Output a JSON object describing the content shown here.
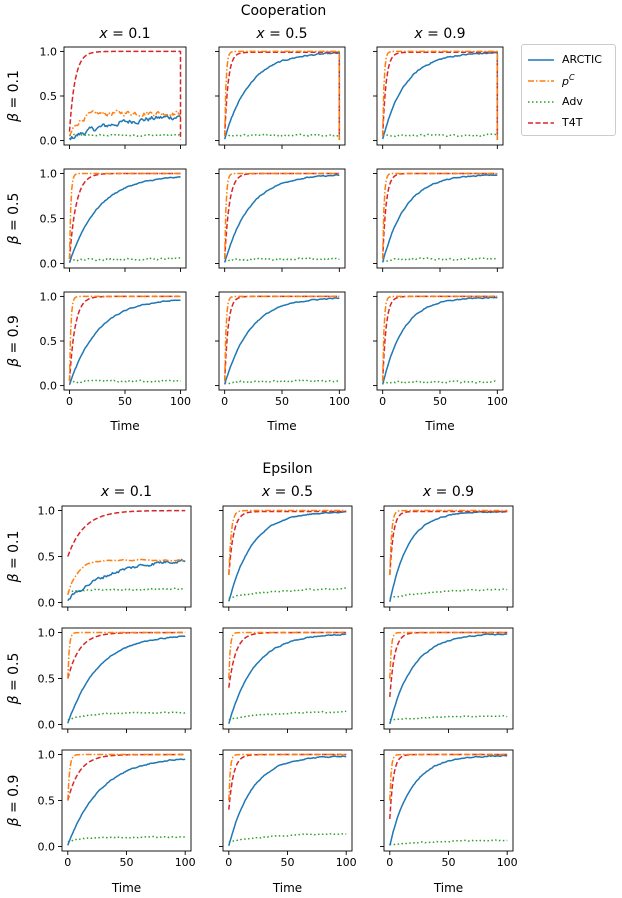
{
  "colors": {
    "ARCTIC": "#1f77b4",
    "pC": "#ff7f0e",
    "Adv": "#2ca02c",
    "T4T": "#d62728"
  },
  "legend": [
    {
      "key": "ARCTIC",
      "label": "ARCTIC",
      "dash": "solid"
    },
    {
      "key": "pC",
      "label": "p",
      "sup": "C",
      "dash": "dashdot"
    },
    {
      "key": "Adv",
      "label": "Adv",
      "dash": "dotted"
    },
    {
      "key": "T4T",
      "label": "T4T",
      "dash": "dashed"
    }
  ],
  "chart_data": [
    {
      "title": "Cooperation",
      "type": "line",
      "xlabel": "Time",
      "xlim": [
        0,
        100
      ],
      "ylim": [
        0,
        1
      ],
      "xticks": [
        "0",
        "50",
        "100"
      ],
      "yticks": [
        "0.0",
        "0.5",
        "1.0"
      ],
      "col_titles": [
        "x = 0.1",
        "x = 0.5",
        "x = 0.9"
      ],
      "row_labels": [
        "β = 0.1",
        "β = 0.5",
        "β = 0.9"
      ],
      "panels": [
        [
          {
            "ARCTIC": {
              "start": 0.02,
              "end": 0.3,
              "tau": 45,
              "noise": 0.03,
              "drop": false
            },
            "pC": {
              "start": 0.04,
              "end": 0.31,
              "tau": 8,
              "noise": 0.03,
              "drop": false
            },
            "Adv": {
              "start": 0.06,
              "end": 0.06,
              "tau": 10,
              "noise": 0.01,
              "drop": false
            },
            "T4T": {
              "start": 0.1,
              "end": 1.0,
              "tau": 5,
              "noise": 0.0,
              "drop": true
            }
          },
          {
            "ARCTIC": {
              "start": 0.02,
              "end": 0.99,
              "tau": 22,
              "noise": 0.008,
              "drop": true
            },
            "pC": {
              "start": 0.05,
              "end": 1.0,
              "tau": 1.2,
              "noise": 0.0,
              "drop": true
            },
            "Adv": {
              "start": 0.05,
              "end": 0.06,
              "tau": 10,
              "noise": 0.01,
              "drop": false
            },
            "T4T": {
              "start": 0.05,
              "end": 0.99,
              "tau": 3,
              "noise": 0.0,
              "drop": true
            }
          },
          {
            "ARCTIC": {
              "start": 0.02,
              "end": 0.99,
              "tau": 20,
              "noise": 0.008,
              "drop": true
            },
            "pC": {
              "start": 0.05,
              "end": 1.0,
              "tau": 1.2,
              "noise": 0.0,
              "drop": true
            },
            "Adv": {
              "start": 0.05,
              "end": 0.06,
              "tau": 10,
              "noise": 0.01,
              "drop": false
            },
            "T4T": {
              "start": 0.05,
              "end": 0.99,
              "tau": 3,
              "noise": 0.0,
              "drop": true
            }
          }
        ],
        [
          {
            "ARCTIC": {
              "start": 0.01,
              "end": 0.98,
              "tau": 26,
              "noise": 0.006,
              "drop": false
            },
            "pC": {
              "start": 0.05,
              "end": 1.0,
              "tau": 1.2,
              "noise": 0.0,
              "drop": false
            },
            "Adv": {
              "start": 0.03,
              "end": 0.05,
              "tau": 10,
              "noise": 0.01,
              "drop": false
            },
            "T4T": {
              "start": 0.05,
              "end": 1.0,
              "tau": 6,
              "noise": 0.0,
              "drop": false
            }
          },
          {
            "ARCTIC": {
              "start": 0.01,
              "end": 0.99,
              "tau": 22,
              "noise": 0.006,
              "drop": false
            },
            "pC": {
              "start": 0.05,
              "end": 1.0,
              "tau": 1.2,
              "noise": 0.0,
              "drop": false
            },
            "Adv": {
              "start": 0.03,
              "end": 0.05,
              "tau": 10,
              "noise": 0.01,
              "drop": false
            },
            "T4T": {
              "start": 0.05,
              "end": 1.0,
              "tau": 4,
              "noise": 0.0,
              "drop": false
            }
          },
          {
            "ARCTIC": {
              "start": 0.01,
              "end": 0.99,
              "tau": 20,
              "noise": 0.006,
              "drop": false
            },
            "pC": {
              "start": 0.05,
              "end": 1.0,
              "tau": 1.2,
              "noise": 0.0,
              "drop": false
            },
            "Adv": {
              "start": 0.03,
              "end": 0.05,
              "tau": 10,
              "noise": 0.01,
              "drop": false
            },
            "T4T": {
              "start": 0.05,
              "end": 1.0,
              "tau": 3,
              "noise": 0.0,
              "drop": false
            }
          }
        ],
        [
          {
            "ARCTIC": {
              "start": 0.01,
              "end": 0.98,
              "tau": 26,
              "noise": 0.006,
              "drop": false
            },
            "pC": {
              "start": 0.05,
              "end": 1.0,
              "tau": 1.2,
              "noise": 0.0,
              "drop": false
            },
            "Adv": {
              "start": 0.03,
              "end": 0.05,
              "tau": 10,
              "noise": 0.01,
              "drop": false
            },
            "T4T": {
              "start": 0.05,
              "end": 1.0,
              "tau": 5,
              "noise": 0.0,
              "drop": false
            }
          },
          {
            "ARCTIC": {
              "start": 0.01,
              "end": 0.99,
              "tau": 22,
              "noise": 0.006,
              "drop": false
            },
            "pC": {
              "start": 0.05,
              "end": 1.0,
              "tau": 1.2,
              "noise": 0.0,
              "drop": false
            },
            "Adv": {
              "start": 0.03,
              "end": 0.05,
              "tau": 10,
              "noise": 0.01,
              "drop": false
            },
            "T4T": {
              "start": 0.05,
              "end": 1.0,
              "tau": 3,
              "noise": 0.0,
              "drop": false
            }
          },
          {
            "ARCTIC": {
              "start": 0.01,
              "end": 0.99,
              "tau": 18,
              "noise": 0.006,
              "drop": false
            },
            "pC": {
              "start": 0.05,
              "end": 1.0,
              "tau": 1.2,
              "noise": 0.0,
              "drop": false
            },
            "Adv": {
              "start": 0.03,
              "end": 0.04,
              "tau": 10,
              "noise": 0.01,
              "drop": false
            },
            "T4T": {
              "start": 0.05,
              "end": 1.0,
              "tau": 3,
              "noise": 0.0,
              "drop": false
            }
          }
        ]
      ]
    },
    {
      "title": "Epsilon",
      "type": "line",
      "xlabel": "Time",
      "xlim": [
        0,
        100
      ],
      "ylim": [
        0,
        1
      ],
      "xticks": [
        "0",
        "50",
        "100"
      ],
      "yticks": [
        "0.0",
        "0.5",
        "1.0"
      ],
      "col_titles": [
        "x = 0.1",
        "x = 0.5",
        "x = 0.9"
      ],
      "row_labels": [
        "β = 0.1",
        "β = 0.5",
        "β = 0.9"
      ],
      "panels": [
        [
          {
            "ARCTIC": {
              "start": 0.03,
              "end": 0.5,
              "tau": 40,
              "noise": 0.02,
              "drop": false
            },
            "pC": {
              "start": 0.08,
              "end": 0.46,
              "tau": 8,
              "noise": 0.006,
              "drop": false
            },
            "Adv": {
              "start": 0.12,
              "end": 0.15,
              "tau": 40,
              "noise": 0.008,
              "drop": false
            },
            "T4T": {
              "start": 0.5,
              "end": 1.0,
              "tau": 14,
              "noise": 0.0,
              "drop": false
            }
          },
          {
            "ARCTIC": {
              "start": 0.01,
              "end": 0.99,
              "tau": 20,
              "noise": 0.006,
              "drop": false
            },
            "pC": {
              "start": 0.3,
              "end": 1.0,
              "tau": 2,
              "noise": 0.0,
              "drop": false
            },
            "Adv": {
              "start": 0.05,
              "end": 0.16,
              "tau": 40,
              "noise": 0.006,
              "drop": false
            },
            "T4T": {
              "start": 0.3,
              "end": 0.99,
              "tau": 4,
              "noise": 0.0,
              "drop": false
            }
          },
          {
            "ARCTIC": {
              "start": 0.01,
              "end": 0.99,
              "tau": 16,
              "noise": 0.006,
              "drop": false
            },
            "pC": {
              "start": 0.3,
              "end": 1.0,
              "tau": 1.5,
              "noise": 0.0,
              "drop": false
            },
            "Adv": {
              "start": 0.05,
              "end": 0.15,
              "tau": 40,
              "noise": 0.006,
              "drop": false
            },
            "T4T": {
              "start": 0.3,
              "end": 0.99,
              "tau": 3,
              "noise": 0.0,
              "drop": false
            }
          }
        ],
        [
          {
            "ARCTIC": {
              "start": 0.01,
              "end": 0.98,
              "tau": 26,
              "noise": 0.006,
              "drop": false
            },
            "pC": {
              "start": 0.5,
              "end": 1.0,
              "tau": 1.2,
              "noise": 0.0,
              "drop": false
            },
            "Adv": {
              "start": 0.05,
              "end": 0.13,
              "tau": 20,
              "noise": 0.006,
              "drop": false
            },
            "T4T": {
              "start": 0.5,
              "end": 1.0,
              "tau": 10,
              "noise": 0.0,
              "drop": false
            }
          },
          {
            "ARCTIC": {
              "start": 0.01,
              "end": 0.99,
              "tau": 22,
              "noise": 0.006,
              "drop": false
            },
            "pC": {
              "start": 0.5,
              "end": 1.0,
              "tau": 1.2,
              "noise": 0.0,
              "drop": false
            },
            "Adv": {
              "start": 0.05,
              "end": 0.14,
              "tau": 30,
              "noise": 0.006,
              "drop": false
            },
            "T4T": {
              "start": 0.4,
              "end": 1.0,
              "tau": 6,
              "noise": 0.0,
              "drop": false
            }
          },
          {
            "ARCTIC": {
              "start": 0.01,
              "end": 0.99,
              "tau": 20,
              "noise": 0.006,
              "drop": false
            },
            "pC": {
              "start": 0.5,
              "end": 1.0,
              "tau": 1.2,
              "noise": 0.0,
              "drop": false
            },
            "Adv": {
              "start": 0.05,
              "end": 0.09,
              "tau": 30,
              "noise": 0.006,
              "drop": false
            },
            "T4T": {
              "start": 0.3,
              "end": 1.0,
              "tau": 4,
              "noise": 0.0,
              "drop": false
            }
          }
        ],
        [
          {
            "ARCTIC": {
              "start": 0.01,
              "end": 0.98,
              "tau": 28,
              "noise": 0.006,
              "drop": false
            },
            "pC": {
              "start": 0.5,
              "end": 1.0,
              "tau": 1.5,
              "noise": 0.0,
              "drop": false
            },
            "Adv": {
              "start": 0.05,
              "end": 0.1,
              "tau": 10,
              "noise": 0.006,
              "drop": false
            },
            "T4T": {
              "start": 0.5,
              "end": 1.0,
              "tau": 10,
              "noise": 0.0,
              "drop": false
            }
          },
          {
            "ARCTIC": {
              "start": 0.01,
              "end": 0.99,
              "tau": 20,
              "noise": 0.006,
              "drop": false
            },
            "pC": {
              "start": 0.5,
              "end": 1.0,
              "tau": 1.2,
              "noise": 0.0,
              "drop": false
            },
            "Adv": {
              "start": 0.05,
              "end": 0.15,
              "tau": 40,
              "noise": 0.006,
              "drop": false
            },
            "T4T": {
              "start": 0.4,
              "end": 1.0,
              "tau": 4,
              "noise": 0.0,
              "drop": false
            }
          },
          {
            "ARCTIC": {
              "start": 0.01,
              "end": 0.99,
              "tau": 18,
              "noise": 0.006,
              "drop": false
            },
            "pC": {
              "start": 0.5,
              "end": 1.0,
              "tau": 1.2,
              "noise": 0.0,
              "drop": false
            },
            "Adv": {
              "start": 0.02,
              "end": 0.07,
              "tau": 40,
              "noise": 0.006,
              "drop": false
            },
            "T4T": {
              "start": 0.3,
              "end": 1.0,
              "tau": 3,
              "noise": 0.0,
              "drop": false
            }
          }
        ]
      ]
    }
  ]
}
